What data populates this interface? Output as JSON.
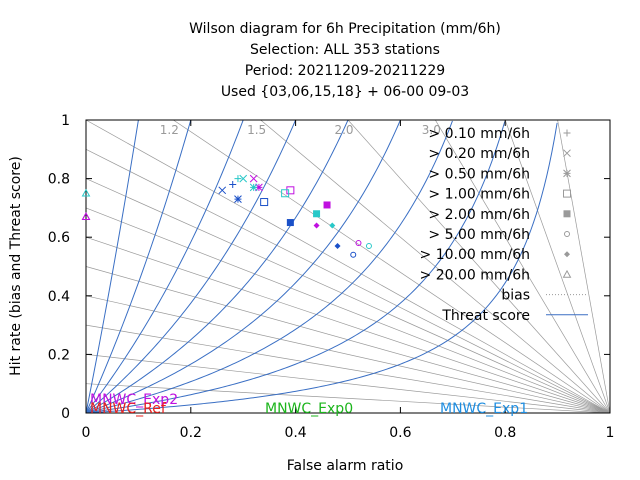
{
  "chart_data": {
    "type": "scatter",
    "title_lines": [
      "Wilson diagram  for 6h Precipitation (mm/6h)",
      "Selection: ALL    353 stations",
      "Period: 20211209-20211229",
      "Used {03,06,15,18} + 06-00 09-03"
    ],
    "xlabel": "False alarm ratio",
    "ylabel": "Hit rate (bias and Threat score)",
    "xlim": [
      0,
      1
    ],
    "ylim": [
      0,
      1
    ],
    "x_ticks": [
      "0",
      "0.2",
      "0.4",
      "0.6",
      "0.8",
      "1"
    ],
    "y_ticks": [
      "0",
      "0.2",
      "0.4",
      "0.6",
      "0.8",
      "1"
    ],
    "bias_labels": [
      "1.2",
      "1.5",
      "2.0",
      "3.0"
    ],
    "bias_lines": [
      0.1,
      0.2,
      0.3,
      0.4,
      0.5,
      0.6,
      0.7,
      0.8,
      0.9,
      1.0,
      1.2,
      1.5,
      2.0,
      3.0,
      5.0,
      10.0
    ],
    "threat_score_lines": [
      0.1,
      0.2,
      0.3,
      0.4,
      0.5,
      0.6,
      0.7,
      0.8,
      0.9
    ],
    "colors": {
      "threat_line": "#3a6fc4",
      "bias_line": "#a0a0a0",
      "MNWC_Ref": "#e8211e",
      "MNWC_Exp0": "#1cb51c",
      "MNWC_Exp1": "#1e8de0",
      "MNWC_Exp2": "#c010e0",
      "Exp3": "#28c8c8",
      "Exp4": "#1a50c8"
    },
    "legend": {
      "position": "right",
      "entries": [
        {
          "label": "> 0.10 mm/6h",
          "marker": "plus"
        },
        {
          "label": "> 0.20 mm/6h",
          "marker": "cross"
        },
        {
          "label": "> 0.50 mm/6h",
          "marker": "star"
        },
        {
          "label": "> 1.00 mm/6h",
          "marker": "square-open"
        },
        {
          "label": "> 2.00 mm/6h",
          "marker": "square-filled"
        },
        {
          "label": "> 5.00 mm/6h",
          "marker": "circle-open"
        },
        {
          "label": "> 10.00 mm/6h",
          "marker": "circle-filled"
        },
        {
          "label": "> 20.00 mm/6h",
          "marker": "triangle-open"
        },
        {
          "label": "bias",
          "marker": "line-dotted"
        },
        {
          "label": "Threat score",
          "marker": "line-solid"
        }
      ]
    },
    "model_labels": [
      {
        "text": "MNWC_Exp2",
        "color_key": "MNWC_Exp2"
      },
      {
        "text": "MNWC_Ref",
        "color_key": "MNWC_Ref"
      },
      {
        "text": "MNWC_Exp0",
        "color_key": "MNWC_Exp0"
      },
      {
        "text": "MNWC_Exp1",
        "color_key": "MNWC_Exp1"
      }
    ],
    "series": [
      {
        "color_key": "MNWC_Exp2",
        "points": [
          {
            "x": 0.0,
            "y": 0.67,
            "m": "triangle-open"
          },
          {
            "x": 0.32,
            "y": 0.8,
            "m": "cross"
          },
          {
            "x": 0.33,
            "y": 0.77,
            "m": "star"
          },
          {
            "x": 0.39,
            "y": 0.76,
            "m": "square-open"
          },
          {
            "x": 0.46,
            "y": 0.71,
            "m": "square-filled"
          },
          {
            "x": 0.44,
            "y": 0.64,
            "m": "circle-filled"
          },
          {
            "x": 0.52,
            "y": 0.58,
            "m": "circle-open"
          },
          {
            "x": 0.0,
            "y": 0.67,
            "m": "triangle-open"
          }
        ]
      },
      {
        "color_key": "Exp3",
        "points": [
          {
            "x": 0.0,
            "y": 0.75,
            "m": "triangle-open"
          },
          {
            "x": 0.29,
            "y": 0.8,
            "m": "plus"
          },
          {
            "x": 0.3,
            "y": 0.8,
            "m": "cross"
          },
          {
            "x": 0.32,
            "y": 0.77,
            "m": "star"
          },
          {
            "x": 0.38,
            "y": 0.75,
            "m": "square-open"
          },
          {
            "x": 0.44,
            "y": 0.68,
            "m": "square-filled"
          },
          {
            "x": 0.47,
            "y": 0.64,
            "m": "circle-filled"
          },
          {
            "x": 0.54,
            "y": 0.57,
            "m": "circle-open"
          }
        ]
      },
      {
        "color_key": "Exp4",
        "points": [
          {
            "x": 0.26,
            "y": 0.76,
            "m": "cross"
          },
          {
            "x": 0.28,
            "y": 0.78,
            "m": "plus"
          },
          {
            "x": 0.29,
            "y": 0.73,
            "m": "star"
          },
          {
            "x": 0.34,
            "y": 0.72,
            "m": "square-open"
          },
          {
            "x": 0.39,
            "y": 0.65,
            "m": "square-filled"
          },
          {
            "x": 0.48,
            "y": 0.57,
            "m": "circle-filled"
          },
          {
            "x": 0.51,
            "y": 0.54,
            "m": "circle-open"
          }
        ]
      }
    ]
  }
}
